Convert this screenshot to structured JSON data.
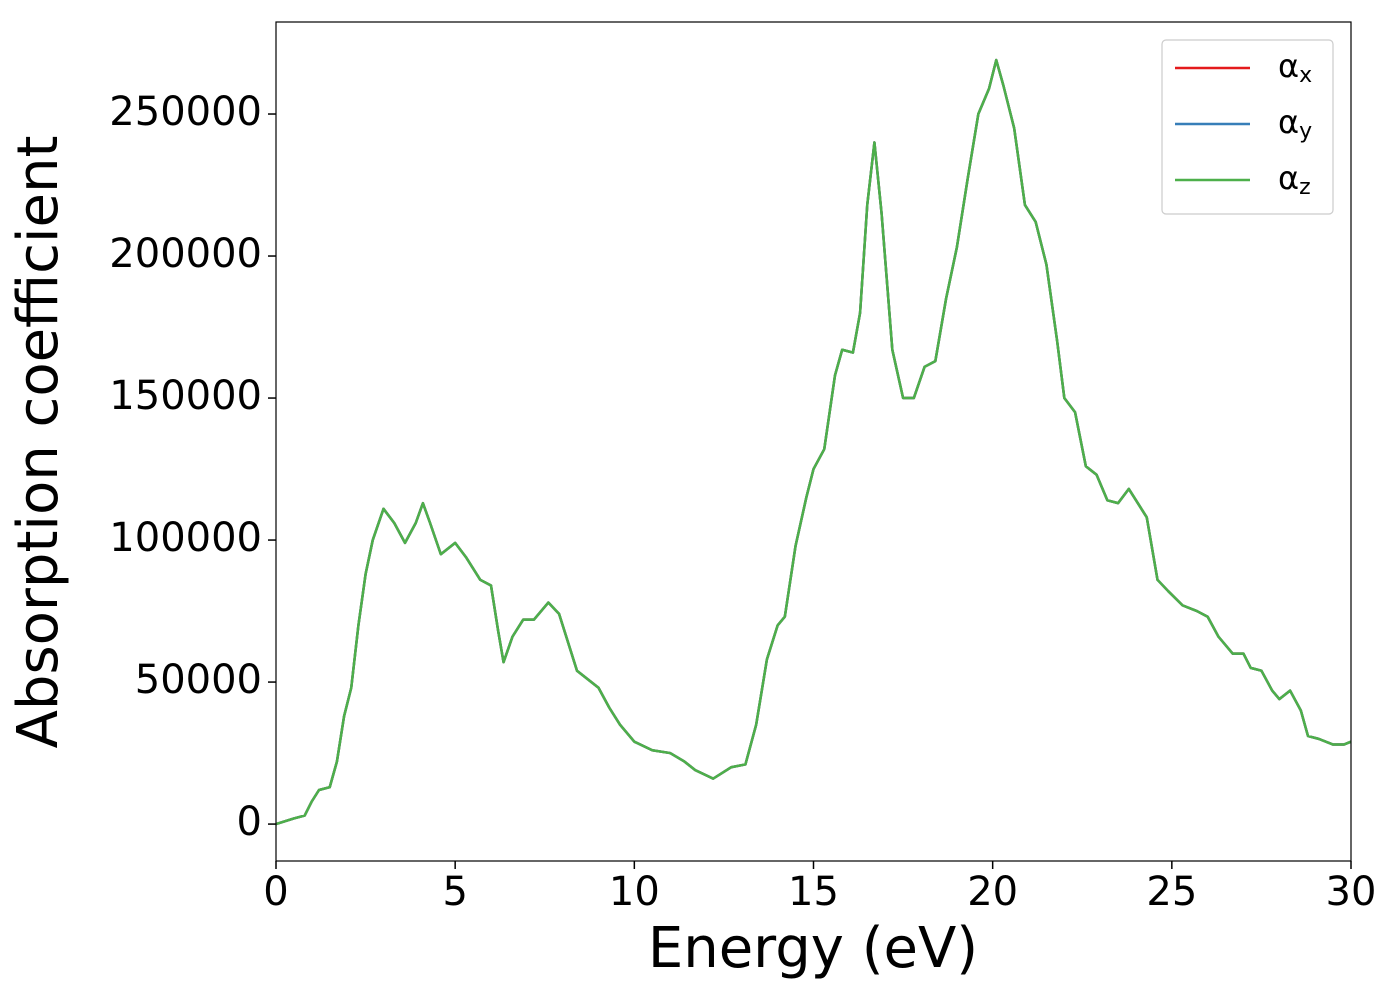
{
  "chart_data": {
    "type": "line",
    "xlabel": "Energy (eV)",
    "ylabel": "Absorption coefficient",
    "x": [
      0,
      0.5,
      0.8,
      1.0,
      1.2,
      1.5,
      1.7,
      1.9,
      2.1,
      2.3,
      2.5,
      2.7,
      3.0,
      3.3,
      3.6,
      3.9,
      4.1,
      4.3,
      4.6,
      5.0,
      5.3,
      5.7,
      6.0,
      6.2,
      6.35,
      6.6,
      6.9,
      7.2,
      7.6,
      7.9,
      8.1,
      8.4,
      8.7,
      9.0,
      9.3,
      9.6,
      10.0,
      10.5,
      11.0,
      11.4,
      11.7,
      12.2,
      12.7,
      13.1,
      13.4,
      13.7,
      14.0,
      14.2,
      14.5,
      14.8,
      15.0,
      15.3,
      15.6,
      15.8,
      16.1,
      16.3,
      16.5,
      16.7,
      16.9,
      17.2,
      17.5,
      17.8,
      18.1,
      18.4,
      18.7,
      19.0,
      19.3,
      19.6,
      19.9,
      20.1,
      20.3,
      20.6,
      20.9,
      21.2,
      21.5,
      21.8,
      22.0,
      22.3,
      22.6,
      22.9,
      23.2,
      23.5,
      23.8,
      24.1,
      24.3,
      24.6,
      24.9,
      25.3,
      25.7,
      26.0,
      26.3,
      26.7,
      27.0,
      27.2,
      27.5,
      27.8,
      28.0,
      28.3,
      28.6,
      28.8,
      29.1,
      29.5,
      29.8,
      30.0
    ],
    "series": [
      {
        "name": "αx",
        "color": "#e41a1c",
        "values": [
          0,
          2000,
          3000,
          8000,
          12000,
          13000,
          22000,
          38000,
          48000,
          70000,
          88000,
          100000,
          111000,
          106000,
          99000,
          106000,
          113000,
          106000,
          95000,
          99000,
          94000,
          86000,
          84000,
          68000,
          57000,
          66000,
          72000,
          72000,
          78000,
          74000,
          66000,
          54000,
          51000,
          48000,
          41000,
          35000,
          29000,
          26000,
          25000,
          22000,
          19000,
          16000,
          20000,
          21000,
          35000,
          58000,
          70000,
          73000,
          98000,
          115000,
          125000,
          132000,
          158000,
          167000,
          166000,
          180000,
          218000,
          240000,
          215000,
          167000,
          150000,
          150000,
          161000,
          163000,
          185000,
          203000,
          227000,
          250000,
          259000,
          269000,
          260000,
          245000,
          218000,
          212000,
          197000,
          170000,
          150000,
          145000,
          126000,
          123000,
          114000,
          113000,
          118000,
          112000,
          108000,
          86000,
          82000,
          77000,
          75000,
          73000,
          66000,
          60000,
          60000,
          55000,
          54000,
          47000,
          44000,
          47000,
          40000,
          31000,
          30000,
          28000,
          28000,
          29000
        ]
      },
      {
        "name": "αy",
        "color": "#377eb8",
        "values": [
          0,
          2000,
          3000,
          8000,
          12000,
          13000,
          22000,
          38000,
          48000,
          70000,
          88000,
          100000,
          111000,
          106000,
          99000,
          106000,
          113000,
          106000,
          95000,
          99000,
          94000,
          86000,
          84000,
          68000,
          57000,
          66000,
          72000,
          72000,
          78000,
          74000,
          66000,
          54000,
          51000,
          48000,
          41000,
          35000,
          29000,
          26000,
          25000,
          22000,
          19000,
          16000,
          20000,
          21000,
          35000,
          58000,
          70000,
          73000,
          98000,
          115000,
          125000,
          132000,
          158000,
          167000,
          166000,
          180000,
          218000,
          240000,
          215000,
          167000,
          150000,
          150000,
          161000,
          163000,
          185000,
          203000,
          227000,
          250000,
          259000,
          269000,
          260000,
          245000,
          218000,
          212000,
          197000,
          170000,
          150000,
          145000,
          126000,
          123000,
          114000,
          113000,
          118000,
          112000,
          108000,
          86000,
          82000,
          77000,
          75000,
          73000,
          66000,
          60000,
          60000,
          55000,
          54000,
          47000,
          44000,
          47000,
          40000,
          31000,
          30000,
          28000,
          28000,
          29000
        ]
      },
      {
        "name": "αz",
        "color": "#4daf4a",
        "values": [
          0,
          2000,
          3000,
          8000,
          12000,
          13000,
          22000,
          38000,
          48000,
          70000,
          88000,
          100000,
          111000,
          106000,
          99000,
          106000,
          113000,
          106000,
          95000,
          99000,
          94000,
          86000,
          84000,
          68000,
          57000,
          66000,
          72000,
          72000,
          78000,
          74000,
          66000,
          54000,
          51000,
          48000,
          41000,
          35000,
          29000,
          26000,
          25000,
          22000,
          19000,
          16000,
          20000,
          21000,
          35000,
          58000,
          70000,
          73000,
          98000,
          115000,
          125000,
          132000,
          158000,
          167000,
          166000,
          180000,
          218000,
          240000,
          215000,
          167000,
          150000,
          150000,
          161000,
          163000,
          185000,
          203000,
          227000,
          250000,
          259000,
          269000,
          260000,
          245000,
          218000,
          212000,
          197000,
          170000,
          150000,
          145000,
          126000,
          123000,
          114000,
          113000,
          118000,
          112000,
          108000,
          86000,
          82000,
          77000,
          75000,
          73000,
          66000,
          60000,
          60000,
          55000,
          54000,
          47000,
          44000,
          47000,
          40000,
          31000,
          30000,
          28000,
          28000,
          29000
        ]
      }
    ],
    "xlim": [
      0,
      30
    ],
    "xticks": [
      0,
      5,
      10,
      15,
      20,
      25,
      30
    ],
    "ylim": [
      -13000,
      282400
    ],
    "yticks": [
      0,
      50000,
      100000,
      150000,
      200000,
      250000
    ],
    "grid": false,
    "legend": "upper right"
  }
}
